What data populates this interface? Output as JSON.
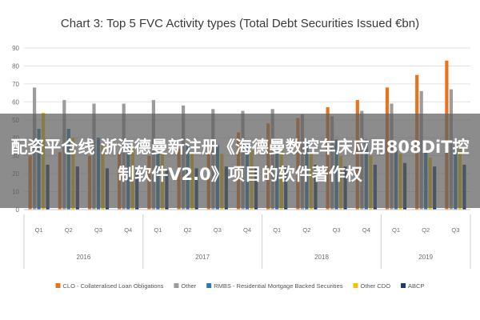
{
  "overlay_caption": "配资平仓线 浙海德曼新注册《海德曼数控车床应用808DiT控制软件V2.0》项目的软件著作权",
  "chart_data": {
    "type": "bar",
    "title": "Chart 3: Top 5 FVC Activity types (Total Debt Securities Issued €bn)",
    "xlabel": "",
    "ylabel": "",
    "ylim": [
      0,
      90
    ],
    "yticks": [
      0,
      10,
      20,
      30,
      40,
      50,
      60,
      70,
      80,
      90
    ],
    "grid": true,
    "legend_position": "bottom",
    "categories": [
      "Q1",
      "Q2",
      "Q3",
      "Q4",
      "Q1",
      "Q2",
      "Q3",
      "Q4",
      "Q1",
      "Q2",
      "Q3",
      "Q4",
      "Q1",
      "Q2",
      "Q3"
    ],
    "groups": [
      {
        "label": "2016",
        "count": 4
      },
      {
        "label": "2017",
        "count": 4
      },
      {
        "label": "2018",
        "count": 4
      },
      {
        "label": "2019",
        "count": 3
      }
    ],
    "series": [
      {
        "name": "CLO - Collateralised Loan Obligations",
        "color": "#e8731e",
        "values": [
          30,
          32,
          30,
          32,
          30,
          34,
          34,
          43,
          48,
          51,
          57,
          61,
          68,
          75,
          83
        ]
      },
      {
        "name": "Other",
        "color": "#9c9c9c",
        "values": [
          68,
          61,
          59,
          59,
          61,
          58,
          56,
          55,
          56,
          53,
          52,
          55,
          59,
          66,
          67
        ]
      },
      {
        "name": "RMBS - Residential Mortgage Backed Securities",
        "color": "#2f78a7",
        "values": [
          45,
          45,
          40,
          38,
          37,
          36,
          36,
          36,
          37,
          38,
          39,
          39,
          33,
          32,
          36
        ]
      },
      {
        "name": "Other CDO",
        "color": "#f2c200",
        "values": [
          54,
          40,
          36,
          35,
          32,
          32,
          31,
          33,
          35,
          31,
          30,
          30,
          31,
          29,
          34
        ]
      },
      {
        "name": "ABCP",
        "color": "#1f3b6e",
        "values": [
          25,
          24,
          23,
          22,
          22,
          23,
          24,
          23,
          24,
          25,
          24,
          25,
          26,
          24,
          25
        ]
      }
    ]
  }
}
